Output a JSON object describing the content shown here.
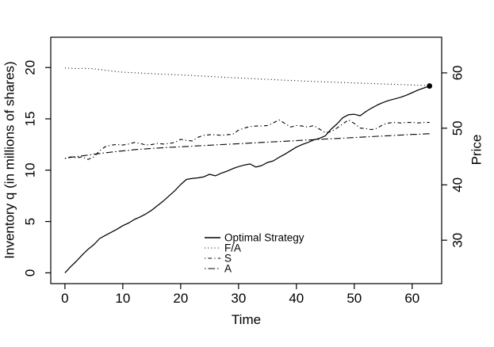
{
  "figure": {
    "background": "#ffffff",
    "line_color": "#000000",
    "axis_color": "#000000"
  },
  "chart_data": {
    "type": "line",
    "title": "",
    "xlabel": "Time",
    "ylabel_left": "Inventory q (in millions of shares)",
    "ylabel_right": "Price",
    "grid": false,
    "xlim": [
      -2.45,
      65.1
    ],
    "ylim_left": [
      -1.05,
      22.95
    ],
    "x_ticks": [
      0,
      10,
      20,
      30,
      40,
      50,
      60
    ],
    "y_ticks_left": [
      0,
      5,
      10,
      15,
      20
    ],
    "y_ticks_right": [
      {
        "label": "30",
        "pos": 3.18
      },
      {
        "label": "40",
        "pos": 8.57
      },
      {
        "label": "50",
        "pos": 14.09
      },
      {
        "label": "60",
        "pos": 19.48
      }
    ],
    "legend": {
      "location": "inside-bottom-right",
      "frame": false
    },
    "x": [
      0,
      1,
      2,
      3,
      4,
      5,
      6,
      7,
      8,
      9,
      10,
      11,
      12,
      13,
      14,
      15,
      16,
      17,
      18,
      19,
      20,
      21,
      22,
      23,
      24,
      25,
      26,
      27,
      28,
      29,
      30,
      31,
      32,
      33,
      34,
      35,
      36,
      37,
      38,
      39,
      40,
      41,
      42,
      43,
      44,
      45,
      46,
      47,
      48,
      49,
      50,
      51,
      52,
      53,
      54,
      55,
      56,
      57,
      58,
      59,
      60,
      61,
      62,
      63
    ],
    "series": [
      {
        "name": "Optimal Strategy",
        "style": "solid",
        "axis": "left",
        "values": [
          0,
          0.6,
          1.15,
          1.75,
          2.3,
          2.75,
          3.35,
          3.65,
          3.95,
          4.25,
          4.6,
          4.85,
          5.2,
          5.45,
          5.75,
          6.1,
          6.55,
          7.0,
          7.5,
          8.0,
          8.6,
          9.1,
          9.2,
          9.25,
          9.35,
          9.6,
          9.45,
          9.7,
          9.9,
          10.15,
          10.35,
          10.5,
          10.6,
          10.3,
          10.45,
          10.75,
          10.9,
          11.25,
          11.55,
          11.9,
          12.25,
          12.5,
          12.7,
          12.95,
          13.1,
          13.35,
          14.0,
          14.5,
          15.1,
          15.4,
          15.45,
          15.3,
          15.7,
          16.05,
          16.35,
          16.6,
          16.8,
          16.95,
          17.1,
          17.3,
          17.55,
          17.8,
          18.0,
          18.2
        ],
        "end_dot": {
          "x": 63,
          "y": 18.2
        }
      },
      {
        "name": "F/A",
        "style": "dotted",
        "axis": "left",
        "values": [
          19.95,
          19.93,
          19.9,
          19.92,
          19.9,
          19.88,
          19.8,
          19.73,
          19.66,
          19.6,
          19.55,
          19.52,
          19.49,
          19.46,
          19.43,
          19.4,
          19.37,
          19.35,
          19.32,
          19.3,
          19.28,
          19.25,
          19.22,
          19.19,
          19.16,
          19.13,
          19.1,
          19.07,
          19.04,
          19.01,
          18.98,
          18.95,
          18.93,
          18.9,
          18.87,
          18.85,
          18.82,
          18.79,
          18.77,
          18.74,
          18.72,
          18.69,
          18.67,
          18.64,
          18.62,
          18.6,
          18.58,
          18.56,
          18.54,
          18.52,
          18.5,
          18.48,
          18.46,
          18.44,
          18.42,
          18.4,
          18.38,
          18.36,
          18.34,
          18.32,
          18.3,
          18.28,
          18.26,
          18.25
        ]
      },
      {
        "name": "S",
        "style": "dotdash",
        "axis": "right",
        "values": [
          11.15,
          11.3,
          11.2,
          11.3,
          11.05,
          11.3,
          11.9,
          12.3,
          12.45,
          12.5,
          12.45,
          12.55,
          12.7,
          12.6,
          12.45,
          12.5,
          12.6,
          12.55,
          12.6,
          12.7,
          13.0,
          12.9,
          12.85,
          13.2,
          13.4,
          13.45,
          13.45,
          13.4,
          13.45,
          13.5,
          13.9,
          14.1,
          14.25,
          14.3,
          14.3,
          14.35,
          14.6,
          14.9,
          14.55,
          14.2,
          14.35,
          14.3,
          14.2,
          14.35,
          14.0,
          13.65,
          13.75,
          14.1,
          14.5,
          14.9,
          14.55,
          14.1,
          14.05,
          13.95,
          14.1,
          14.45,
          14.6,
          14.65,
          14.6,
          14.65,
          14.65,
          14.6,
          14.65,
          14.65
        ]
      },
      {
        "name": "A",
        "style": "twodash",
        "axis": "right",
        "values": [
          11.15,
          11.25,
          11.33,
          11.4,
          11.47,
          11.55,
          11.62,
          11.69,
          11.76,
          11.82,
          11.88,
          11.94,
          12.0,
          12.04,
          12.08,
          12.12,
          12.15,
          12.19,
          12.22,
          12.25,
          12.28,
          12.31,
          12.34,
          12.37,
          12.4,
          12.43,
          12.46,
          12.49,
          12.52,
          12.55,
          12.58,
          12.61,
          12.64,
          12.67,
          12.7,
          12.73,
          12.76,
          12.79,
          12.82,
          12.85,
          12.88,
          12.91,
          12.94,
          12.97,
          13.0,
          13.03,
          13.06,
          13.09,
          13.12,
          13.15,
          13.18,
          13.21,
          13.24,
          13.27,
          13.3,
          13.33,
          13.36,
          13.39,
          13.42,
          13.45,
          13.48,
          13.5,
          13.53,
          13.55
        ]
      }
    ]
  }
}
